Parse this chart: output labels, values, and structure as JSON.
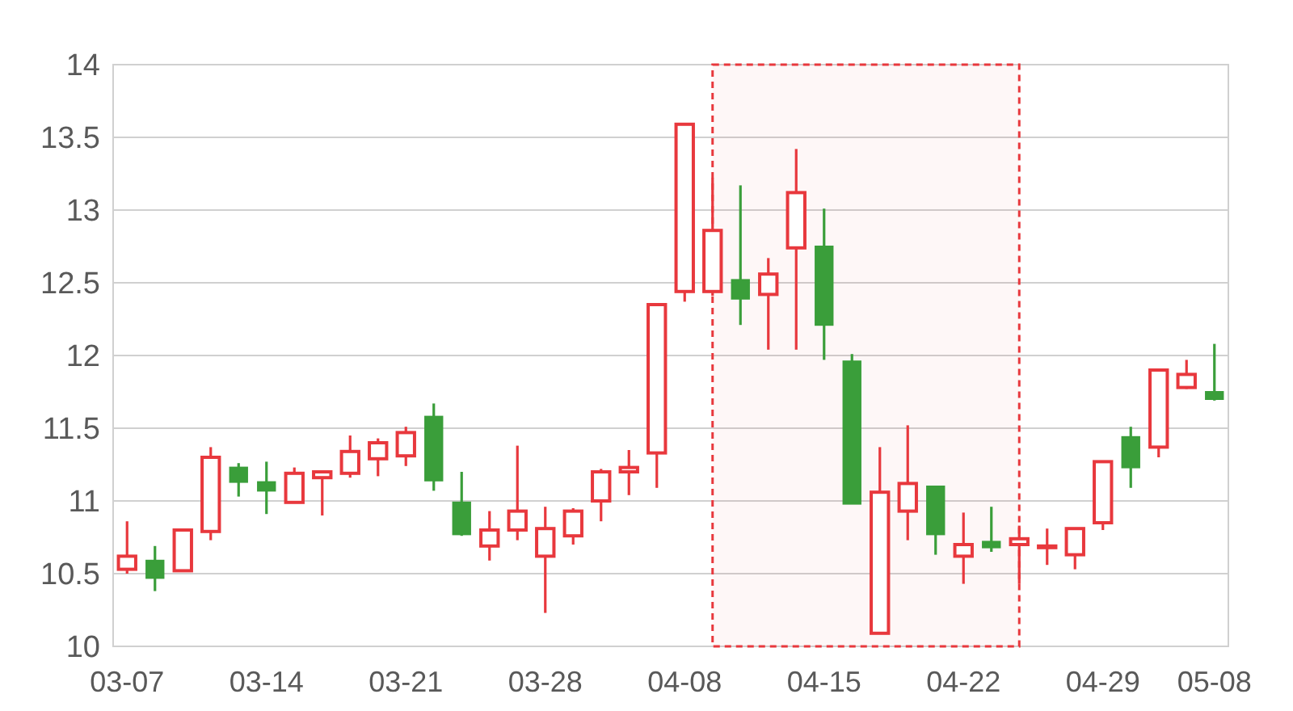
{
  "chart_data": {
    "type": "candlestick",
    "categories": [
      "03-07",
      null,
      null,
      null,
      null,
      "03-14",
      null,
      null,
      null,
      null,
      "03-21",
      null,
      null,
      null,
      null,
      "03-28",
      null,
      null,
      null,
      null,
      "04-08",
      null,
      null,
      null,
      null,
      "04-15",
      null,
      null,
      null,
      null,
      "04-22",
      null,
      null,
      null,
      null,
      "04-29",
      null,
      null,
      null,
      "05-08"
    ],
    "ohlc": [
      [
        10.53,
        10.86,
        10.5,
        10.62
      ],
      [
        10.59,
        10.69,
        10.38,
        10.47
      ],
      [
        10.52,
        10.81,
        10.52,
        10.8
      ],
      [
        10.79,
        11.37,
        10.73,
        11.3
      ],
      [
        11.23,
        11.26,
        11.03,
        11.13
      ],
      [
        11.13,
        11.27,
        10.91,
        11.07
      ],
      [
        10.99,
        11.23,
        10.99,
        11.19
      ],
      [
        11.16,
        11.2,
        10.9,
        11.2
      ],
      [
        11.19,
        11.45,
        11.16,
        11.34
      ],
      [
        11.29,
        11.43,
        11.17,
        11.4
      ],
      [
        11.31,
        11.51,
        11.24,
        11.47
      ],
      [
        11.58,
        11.67,
        11.07,
        11.14
      ],
      [
        10.99,
        11.2,
        10.76,
        10.77
      ],
      [
        10.69,
        10.93,
        10.59,
        10.8
      ],
      [
        10.8,
        11.38,
        10.73,
        10.93
      ],
      [
        10.62,
        10.96,
        10.23,
        10.81
      ],
      [
        10.76,
        10.95,
        10.7,
        10.93
      ],
      [
        11.0,
        11.22,
        10.86,
        11.2
      ],
      [
        11.2,
        11.35,
        11.04,
        11.23
      ],
      [
        11.33,
        12.35,
        11.09,
        12.35
      ],
      [
        12.44,
        13.59,
        12.37,
        13.59
      ],
      [
        12.44,
        13.22,
        12.41,
        12.86
      ],
      [
        12.52,
        13.17,
        12.21,
        12.39
      ],
      [
        12.42,
        12.67,
        12.04,
        12.56
      ],
      [
        12.74,
        13.42,
        12.04,
        13.12
      ],
      [
        12.75,
        13.01,
        11.97,
        12.21
      ],
      [
        11.96,
        12.01,
        10.98,
        10.98
      ],
      [
        10.09,
        11.37,
        10.09,
        11.06
      ],
      [
        10.93,
        11.52,
        10.73,
        11.12
      ],
      [
        11.1,
        11.1,
        10.63,
        10.77
      ],
      [
        10.62,
        10.92,
        10.43,
        10.7
      ],
      [
        10.72,
        10.96,
        10.65,
        10.68
      ],
      [
        10.7,
        10.83,
        10.43,
        10.74
      ],
      [
        10.68,
        10.81,
        10.56,
        10.69
      ],
      [
        10.63,
        10.81,
        10.53,
        10.81
      ],
      [
        10.85,
        11.27,
        10.8,
        11.27
      ],
      [
        11.44,
        11.51,
        11.09,
        11.23
      ],
      [
        11.37,
        11.91,
        11.3,
        11.9
      ],
      [
        11.78,
        11.97,
        11.77,
        11.87
      ],
      [
        11.75,
        12.08,
        11.69,
        11.7
      ]
    ],
    "colors": [
      "#e8383d",
      "#3a9e3a",
      "#e8383d",
      "#e8383d",
      "#3a9e3a",
      "#3a9e3a",
      "#e8383d",
      "#e8383d",
      "#e8383d",
      "#e8383d",
      "#e8383d",
      "#3a9e3a",
      "#3a9e3a",
      "#e8383d",
      "#e8383d",
      "#e8383d",
      "#e8383d",
      "#e8383d",
      "#e8383d",
      "#e8383d",
      "#e8383d",
      "#e8383d",
      "#3a9e3a",
      "#e8383d",
      "#e8383d",
      "#3a9e3a",
      "#3a9e3a",
      "#e8383d",
      "#e8383d",
      "#3a9e3a",
      "#e8383d",
      "#3a9e3a",
      "#e8383d",
      "#e8383d",
      "#e8383d",
      "#e8383d",
      "#3a9e3a",
      "#e8383d",
      "#e8383d",
      "#3a9e3a"
    ],
    "ylim": [
      10,
      14
    ],
    "yticks": [
      10,
      10.5,
      11,
      11.5,
      12,
      12.5,
      13,
      13.5,
      14
    ],
    "grid": "y"
  }
}
